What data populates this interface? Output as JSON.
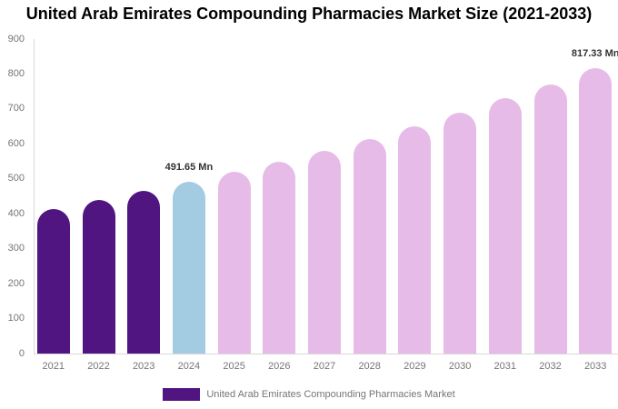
{
  "chart_data": {
    "type": "bar",
    "title": "United Arab Emirates Compounding Pharmacies Market Size (2021-2033)",
    "unit": "Mn",
    "categories": [
      "2021",
      "2022",
      "2023",
      "2024",
      "2025",
      "2026",
      "2027",
      "2028",
      "2029",
      "2030",
      "2031",
      "2032",
      "2033"
    ],
    "values": [
      415,
      440,
      465,
      491.65,
      520,
      550,
      580,
      615,
      650,
      690,
      730,
      770,
      817.33
    ],
    "value_labels": [
      {
        "category": "2024",
        "text": "491.65 Mn"
      },
      {
        "category": "2033",
        "text": "817.33 Mn"
      }
    ],
    "bar_colors": [
      "#511581",
      "#511581",
      "#511581",
      "#A3CBE2",
      "#E6BBE8",
      "#E6BBE8",
      "#E6BBE8",
      "#E6BBE8",
      "#E6BBE8",
      "#E6BBE8",
      "#E6BBE8",
      "#E6BBE8",
      "#E6BBE8"
    ],
    "ylim": [
      0,
      900
    ],
    "yticks": [
      0,
      100,
      200,
      300,
      400,
      500,
      600,
      700,
      800,
      900
    ],
    "grid": false,
    "legend": {
      "position": "bottom",
      "label": "United Arab Emirates Compounding Pharmacies Market",
      "swatch_color": "#511581"
    }
  },
  "colors": {
    "background": "#FFFFFF",
    "title_text": "#000000",
    "axis_line": "#D9D9D9",
    "tick_label": "#757575",
    "data_label": "#333333"
  }
}
